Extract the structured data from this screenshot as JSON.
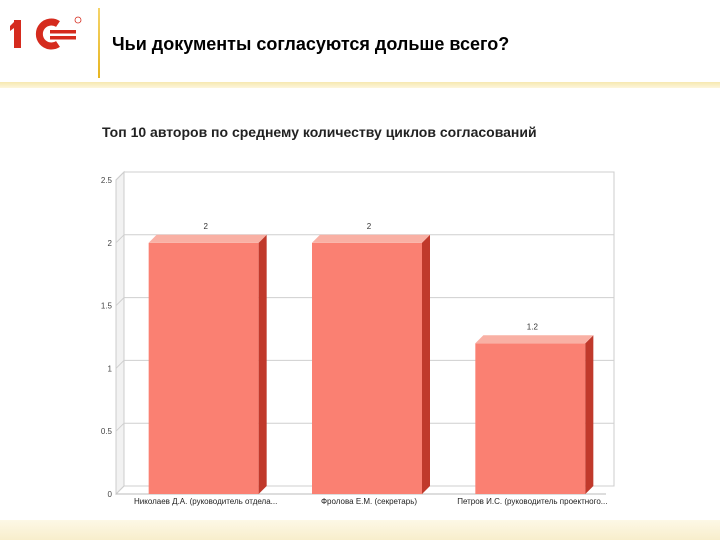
{
  "header": {
    "title": "Чьи документы согласуются дольше всего?",
    "logo_icon": "1c-logo-icon",
    "logo_text": "1С",
    "accent_color": "#d52b1e"
  },
  "chart_data": {
    "type": "bar",
    "title": "Топ 10 авторов по среднему количеству циклов согласований",
    "categories": [
      "Николаев Д.А. (руководитель отдела...",
      "Фролова Е.М. (секретарь)",
      "Петров И.С. (руководитель проектного..."
    ],
    "values": [
      2,
      2,
      1.2
    ],
    "data_labels": [
      "2",
      "2",
      "1.2"
    ],
    "ylim": [
      0,
      2.5
    ],
    "yticks": [
      0,
      0.5,
      1,
      1.5,
      2,
      2.5
    ],
    "ytick_labels": [
      "0",
      "0.5",
      "1",
      "1.5",
      "2",
      "2.5"
    ],
    "grid": true,
    "bar_color": "#fa8072",
    "bar_side_color": "#c0392b",
    "bar_top_color": "#f9b0a4"
  }
}
